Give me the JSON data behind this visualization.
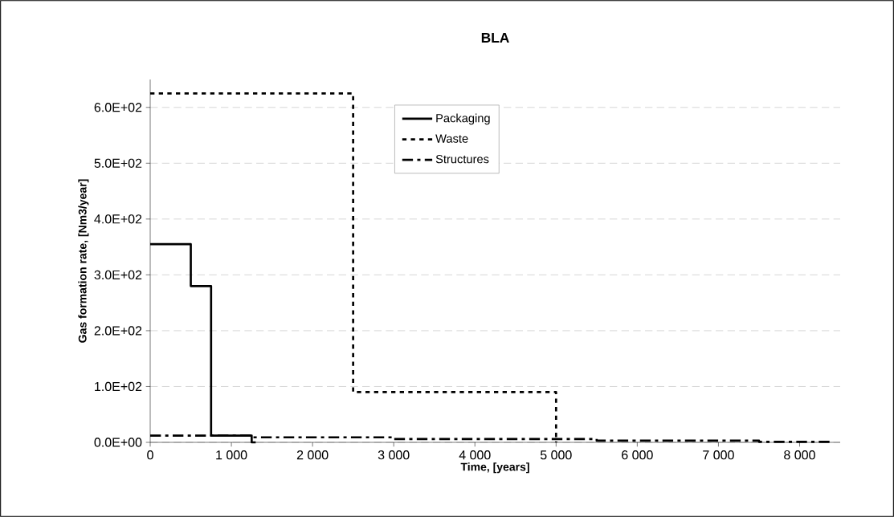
{
  "chart_data": {
    "type": "step",
    "title": "BLA",
    "xlabel": "Time, [years]",
    "ylabel": "Gas formation rate, [Nm3/year]",
    "series": [
      {
        "name": "Packaging",
        "color": "#000000",
        "line_style": "solid",
        "x": [
          0,
          500,
          750,
          1250,
          1300
        ],
        "values": [
          355,
          280,
          12,
          0,
          0
        ]
      },
      {
        "name": "Waste",
        "color": "#000000",
        "line_style": "dotted",
        "x": [
          0,
          2500,
          5000
        ],
        "values": [
          625,
          90,
          0
        ]
      },
      {
        "name": "Structures",
        "color": "#000000",
        "line_style": "dashdot",
        "x": [
          0,
          1250,
          3000,
          5500,
          7500,
          8400
        ],
        "values": [
          12,
          9,
          6,
          3,
          1,
          1
        ]
      }
    ],
    "xlim": [
      0,
      8500
    ],
    "ylim": [
      0,
      650
    ],
    "xticks": [
      0,
      {
        "value": 1000,
        "label": "1 000"
      },
      {
        "value": 2000,
        "label": "2 000"
      },
      {
        "value": 3000,
        "label": "3 000"
      },
      {
        "value": 4000,
        "label": "4 000"
      },
      {
        "value": 5000,
        "label": "5 000"
      },
      {
        "value": 6000,
        "label": "6 000"
      },
      {
        "value": 7000,
        "label": "7 000"
      },
      {
        "value": 8000,
        "label": "8 000"
      }
    ],
    "yticks": [
      {
        "value": 0,
        "label": "0.0E+00"
      },
      {
        "value": 100,
        "label": "1.0E+02"
      },
      {
        "value": 200,
        "label": "2.0E+02"
      },
      {
        "value": 300,
        "label": "3.0E+02"
      },
      {
        "value": 400,
        "label": "4.0E+02"
      },
      {
        "value": 500,
        "label": "5.0E+02"
      },
      {
        "value": 600,
        "label": "6.0E+02"
      }
    ],
    "grid": "y",
    "legend": "top",
    "marker": "none"
  }
}
